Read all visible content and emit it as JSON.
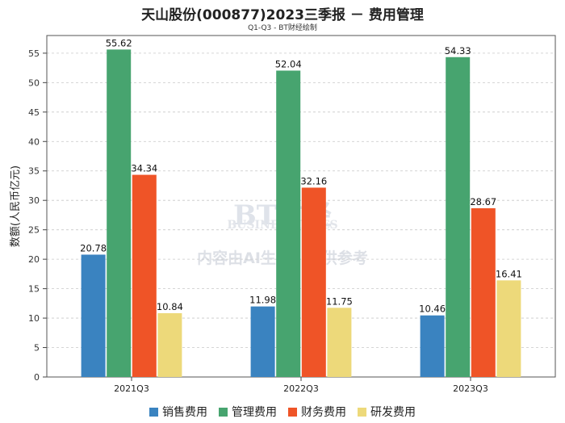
{
  "chart_data": {
    "type": "bar",
    "title": "天山股份(000877)2023三季报 － 费用管理",
    "subtitle": "Q1-Q3 - BT财经绘制",
    "ylabel": "数额(人民币亿元)",
    "xlabel": "",
    "ylim": [
      0,
      58
    ],
    "yticks": [
      0,
      5,
      10,
      15,
      20,
      25,
      30,
      35,
      40,
      45,
      50,
      55
    ],
    "grid": true,
    "legend_position": "bottom",
    "categories": [
      "2021Q3",
      "2022Q3",
      "2023Q3"
    ],
    "series": [
      {
        "name": "销售费用",
        "color": "#3a83c0",
        "values": [
          20.78,
          11.98,
          10.46
        ]
      },
      {
        "name": "管理费用",
        "color": "#47a46f",
        "values": [
          55.62,
          52.04,
          54.33
        ]
      },
      {
        "name": "财务费用",
        "color": "#ef5427",
        "values": [
          34.34,
          32.16,
          28.67
        ]
      },
      {
        "name": "研发费用",
        "color": "#edd97a",
        "values": [
          10.84,
          11.75,
          16.41
        ]
      }
    ],
    "watermark": {
      "line1": "BT财经",
      "line2": "BUSINESSTIMES",
      "line3": "内容由AI生成，仅供参考"
    }
  }
}
